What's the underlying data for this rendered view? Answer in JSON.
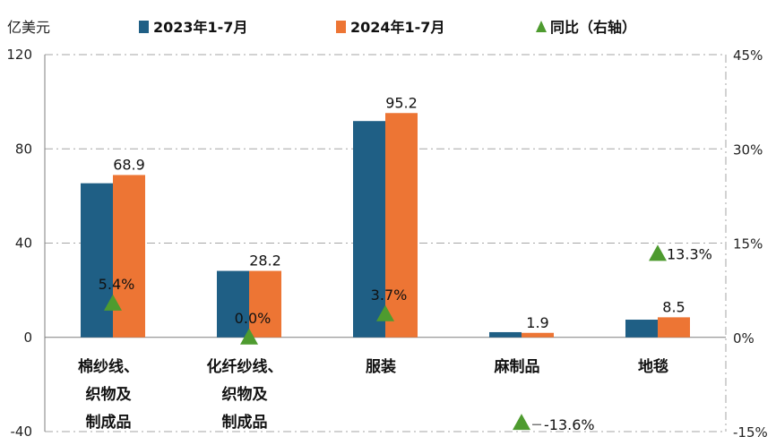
{
  "chart_data": {
    "type": "bar",
    "unit_label": "亿美元",
    "categories": [
      [
        "棉纱线、",
        "织物及",
        "制成品"
      ],
      [
        "化纤纱线、",
        "织物及",
        "制成品"
      ],
      [
        "服装"
      ],
      [
        "麻制品"
      ],
      [
        "地毯"
      ]
    ],
    "series": [
      {
        "name": "2023年1-7月",
        "color": "#1f5f85",
        "values": [
          65.4,
          28.2,
          91.8,
          2.2,
          7.5
        ]
      },
      {
        "name": "2024年1-7月",
        "color": "#ed7534",
        "values": [
          68.9,
          28.2,
          95.2,
          1.9,
          8.5
        ]
      }
    ],
    "data_labels": [
      "68.9",
      "28.2",
      "95.2",
      "1.9",
      "8.5"
    ],
    "yoy": {
      "name": "同比（右轴）",
      "color": "#4e9b2f",
      "values": [
        5.4,
        0.0,
        3.7,
        -13.6,
        13.3
      ],
      "labels": [
        "5.4%",
        "0.0%",
        "3.7%",
        "-13.6%",
        "13.3%"
      ]
    },
    "left_axis": {
      "min": -40,
      "max": 120,
      "ticks": [
        "120",
        "80",
        "40",
        "0",
        "-40"
      ],
      "tick_values": [
        120,
        80,
        40,
        0,
        -40
      ]
    },
    "right_axis": {
      "min": -15,
      "max": 45,
      "ticks": [
        "45%",
        "30%",
        "15%",
        "0%",
        "-15%"
      ],
      "tick_values": [
        45,
        30,
        15,
        0,
        -15
      ]
    },
    "grid": true,
    "legend_position": "top"
  }
}
